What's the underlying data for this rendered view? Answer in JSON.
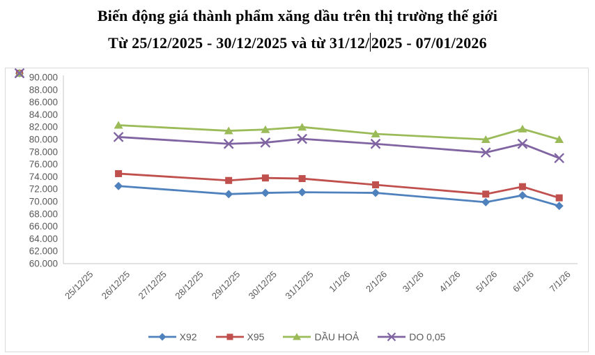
{
  "title": {
    "line1": "Biến động giá thành phẩm xăng dầu trên thị trường thế giới",
    "line2_before_caret": "Từ 25/12/2025 - 30/12/2025 và từ 31/12/",
    "line2_after_caret": "2025 - 07/01/2026"
  },
  "colors": {
    "x92": "#4F81BD",
    "x95": "#C0504D",
    "dau_hoa": "#9BBB59",
    "do_005": "#8064A2",
    "axis_line": "#c6c6c6",
    "tick_text": "#595959",
    "chart_border": "#d9d9d9"
  },
  "chart_data": {
    "type": "line",
    "title": "",
    "xlabel": "",
    "ylabel": "",
    "grid": false,
    "legend_position": "bottom",
    "categories": [
      "25/12/25",
      "26/12/25",
      "27/12/25",
      "28/12/25",
      "29/12/25",
      "30/12/25",
      "31/12/25",
      "1/1/26",
      "2/1/26",
      "3/1/26",
      "4/1/26",
      "5/1/26",
      "6/1/26",
      "7/1/26"
    ],
    "ylim": [
      60000,
      90000
    ],
    "y_tick_step": 2000,
    "y_tick_labels": [
      "90.000",
      "88.000",
      "86.000",
      "84.000",
      "82.000",
      "80.000",
      "78.000",
      "76.000",
      "74.000",
      "72.000",
      "70.000",
      "68.000",
      "66.000",
      "64.000",
      "62.000",
      "60.000"
    ],
    "series": [
      {
        "name": "X92",
        "color": "#4F81BD",
        "marker": "diamond",
        "values": [
          null,
          72500,
          null,
          null,
          71200,
          71400,
          71500,
          null,
          71400,
          null,
          null,
          69900,
          71000,
          69300
        ]
      },
      {
        "name": "X95",
        "color": "#C0504D",
        "marker": "square",
        "values": [
          null,
          74500,
          null,
          null,
          73400,
          73800,
          73700,
          null,
          72700,
          null,
          null,
          71200,
          72400,
          70600
        ]
      },
      {
        "name": "DẦU HOẢ",
        "color": "#9BBB59",
        "marker": "triangle",
        "values": [
          null,
          82300,
          null,
          null,
          81400,
          81600,
          82000,
          null,
          80900,
          null,
          null,
          80000,
          81700,
          80000
        ]
      },
      {
        "name": "DO 0,05",
        "color": "#8064A2",
        "marker": "xcross",
        "values": [
          null,
          80400,
          null,
          null,
          79300,
          79500,
          80100,
          null,
          79300,
          null,
          null,
          77900,
          79300,
          77000
        ]
      }
    ]
  }
}
